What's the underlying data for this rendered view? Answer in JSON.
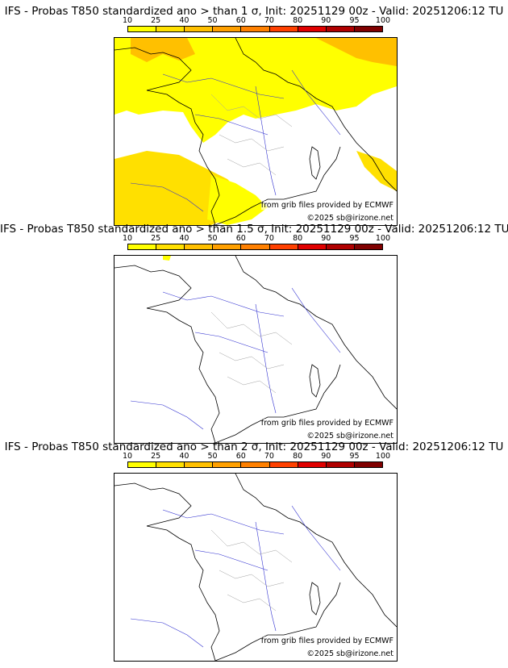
{
  "colorbar": {
    "ticks": [
      "10",
      "25",
      "40",
      "50",
      "60",
      "70",
      "80",
      "90",
      "95",
      "100"
    ],
    "colors": [
      "#ffff00",
      "#ffe000",
      "#ffc000",
      "#ffa000",
      "#ff8000",
      "#ff4000",
      "#e00000",
      "#b00000",
      "#800000"
    ]
  },
  "credit_data": "from grib files provided by ECMWF",
  "credit_copy": "©2025 sb@irizone.net",
  "panels": [
    {
      "title": "IFS - Probas T850  standardized ano > than 1 σ, Init: 20251129 00z - Valid: 20251206:12 TU"
    },
    {
      "title": "IFS - Probas T850  standardized ano > than 1.5 σ, Init: 20251129 00z - Valid: 20251206:12 TU"
    },
    {
      "title": "IFS - Probas T850  standardized ano > than 2 σ, Init: 20251129 00z - Valid: 20251206:12 TU"
    }
  ]
}
